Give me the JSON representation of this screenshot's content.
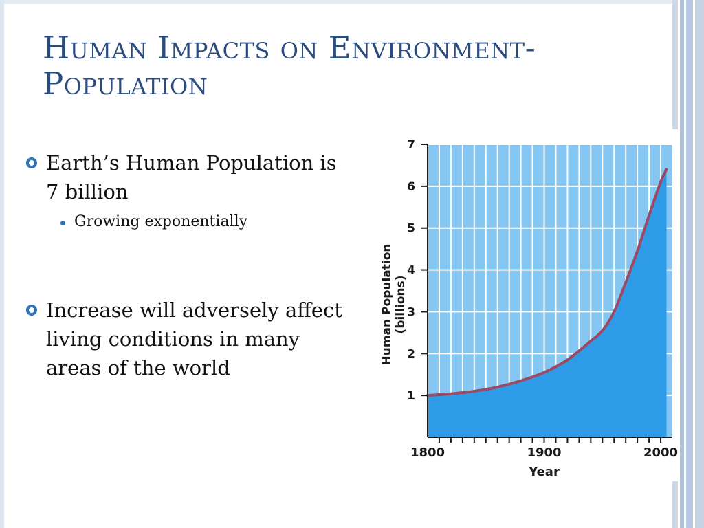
{
  "slide": {
    "title": "Human Impacts on Environment- Population",
    "bullets": [
      {
        "text": "Earth’s Human Population is 7 billion",
        "sub": [
          "Growing exponentially"
        ]
      },
      {
        "text": "Increase will adversely affect living conditions in many areas of the world",
        "sub": []
      }
    ]
  },
  "colors": {
    "title": "#2b4c7e",
    "bullet_marker": "#2f73b8",
    "plot_background": "#85c6f2",
    "area_fill": "#2e9be8",
    "curve": "#9b4a63",
    "grid": "#ffffff"
  },
  "chart_data": {
    "type": "area",
    "xlabel": "Year",
    "ylabel": "Human Population (billions)",
    "xlim": [
      1800,
      2010
    ],
    "ylim": [
      0,
      7
    ],
    "x_ticks": [
      1800,
      1900,
      2000
    ],
    "y_ticks": [
      1,
      2,
      3,
      4,
      5,
      6,
      7
    ],
    "grid": true,
    "series": [
      {
        "x": [
          1800,
          1820,
          1840,
          1860,
          1880,
          1900,
          1920,
          1940,
          1950,
          1960,
          1970,
          1980,
          1990,
          2000,
          2005
        ],
        "values": [
          1.0,
          1.04,
          1.1,
          1.2,
          1.35,
          1.55,
          1.85,
          2.3,
          2.55,
          3.0,
          3.7,
          4.45,
          5.3,
          6.1,
          6.4
        ]
      }
    ]
  }
}
